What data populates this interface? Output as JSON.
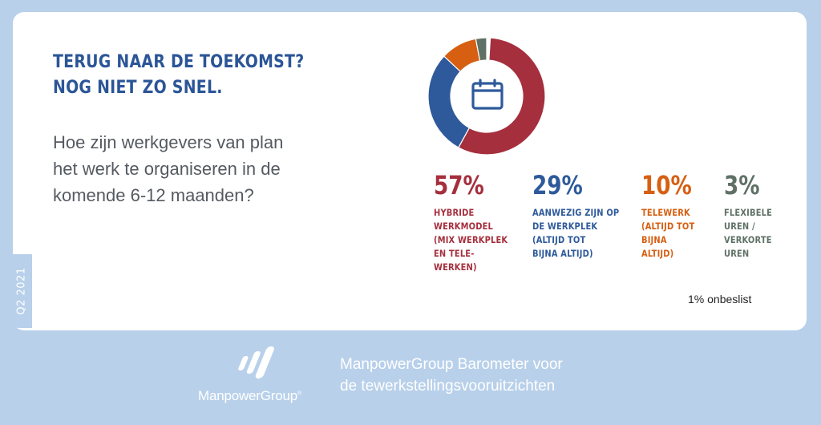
{
  "card": {
    "title_lines": [
      "TERUG NAAR DE TOEKOMST?",
      "NOG NIET ZO SNEL."
    ],
    "question_lines": [
      "Hoe zijn werkgevers van plan",
      "het werk te organiseren in de",
      "komende 6-12 maanden?"
    ],
    "side_tag": "Q2 2021",
    "undecided": "1% onbeslist",
    "center_icon": "calendar-icon"
  },
  "chart_data": {
    "type": "pie",
    "donut": true,
    "title": "",
    "slices": [
      {
        "value": 57,
        "label": "57%",
        "desc": [
          "HYBRIDE",
          "WERKMODEL",
          "(MIX WERKPLEK",
          "EN TELE-",
          "WERKEN)"
        ],
        "color": "#a52f3d"
      },
      {
        "value": 29,
        "label": "29%",
        "desc": [
          "AANWEZIG ZIJN OP",
          "DE WERKPLEK",
          "(ALTIJD TOT",
          "BIJNA ALTIJD)"
        ],
        "color": "#2e5a9b"
      },
      {
        "value": 10,
        "label": "10%",
        "desc": [
          "TELEWERK",
          "(ALTIJD TOT",
          "BIJNA",
          "ALTIJD)"
        ],
        "color": "#d65f12"
      },
      {
        "value": 3,
        "label": "3%",
        "desc": [
          "FLEXIBELE",
          "UREN /",
          "VERKORTE",
          "UREN"
        ],
        "color": "#5f7166"
      }
    ]
  },
  "footer": {
    "brand": "ManpowerGroup",
    "trademark": "®",
    "caption_lines": [
      "ManpowerGroup Barometer voor",
      "de tewerkstellingsvooruitzichten"
    ]
  },
  "colors": {
    "background": "#b8d0ea",
    "card": "#ffffff",
    "title": "#2b5597",
    "text": "#555a61"
  }
}
